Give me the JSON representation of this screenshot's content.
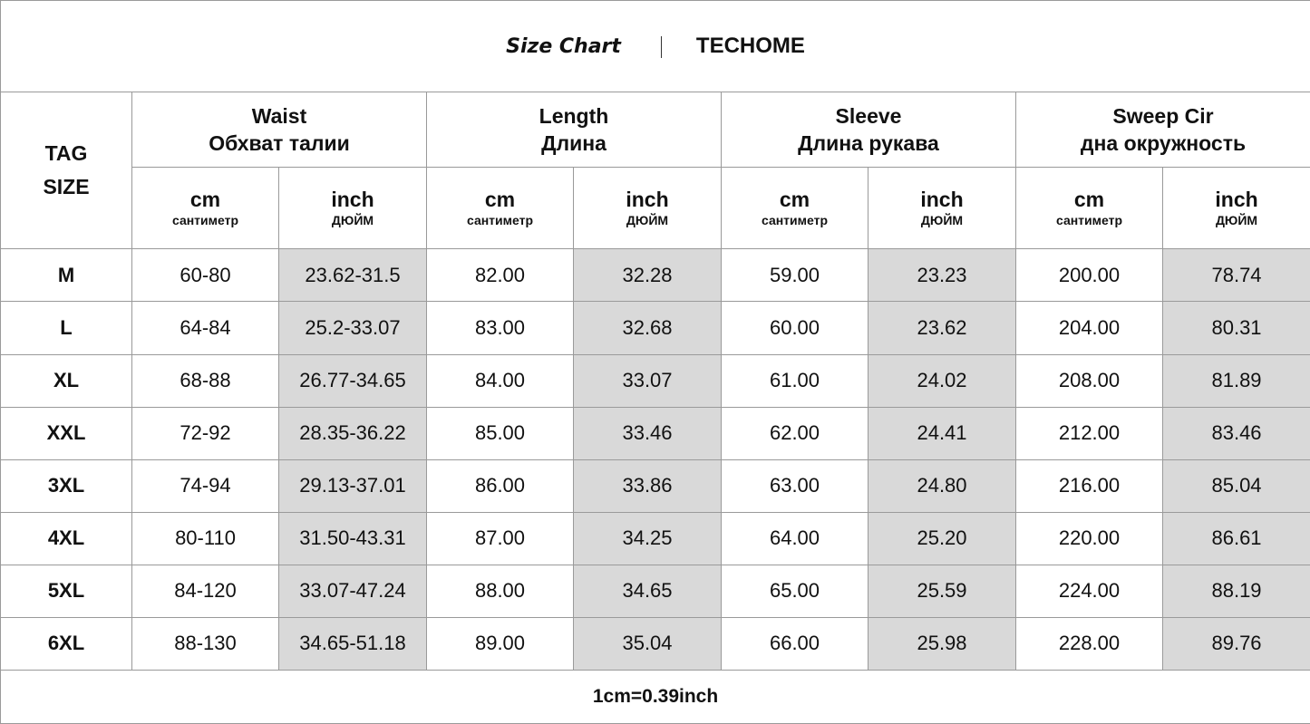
{
  "title": {
    "chart_label": "Size Chart",
    "brand": "TECHOME"
  },
  "header": {
    "tag_size": [
      "TAG",
      "SIZE"
    ],
    "groups": [
      {
        "en": "Waist",
        "ru": "Обхват талии"
      },
      {
        "en": "Length",
        "ru": "Длина"
      },
      {
        "en": "Sleeve",
        "ru": "Длина рукава"
      },
      {
        "en": "Sweep Cir",
        "ru": "дна окружность"
      }
    ],
    "units": {
      "cm": "cm",
      "cm_ru": "сантиметр",
      "inch": "inch",
      "inch_ru": "ДЮЙМ"
    }
  },
  "shade_color": "#d9d9d9",
  "rows": [
    [
      "M",
      "60-80",
      "23.62-31.5",
      "82.00",
      "32.28",
      "59.00",
      "23.23",
      "200.00",
      "78.74"
    ],
    [
      "L",
      "64-84",
      "25.2-33.07",
      "83.00",
      "32.68",
      "60.00",
      "23.62",
      "204.00",
      "80.31"
    ],
    [
      "XL",
      "68-88",
      "26.77-34.65",
      "84.00",
      "33.07",
      "61.00",
      "24.02",
      "208.00",
      "81.89"
    ],
    [
      "XXL",
      "72-92",
      "28.35-36.22",
      "85.00",
      "33.46",
      "62.00",
      "24.41",
      "212.00",
      "83.46"
    ],
    [
      "3XL",
      "74-94",
      "29.13-37.01",
      "86.00",
      "33.86",
      "63.00",
      "24.80",
      "216.00",
      "85.04"
    ],
    [
      "4XL",
      "80-110",
      "31.50-43.31",
      "87.00",
      "34.25",
      "64.00",
      "25.20",
      "220.00",
      "86.61"
    ],
    [
      "5XL",
      "84-120",
      "33.07-47.24",
      "88.00",
      "34.65",
      "65.00",
      "25.59",
      "224.00",
      "88.19"
    ],
    [
      "6XL",
      "88-130",
      "34.65-51.18",
      "89.00",
      "35.04",
      "66.00",
      "25.98",
      "228.00",
      "89.76"
    ]
  ],
  "footer": "1cm=0.39inch"
}
